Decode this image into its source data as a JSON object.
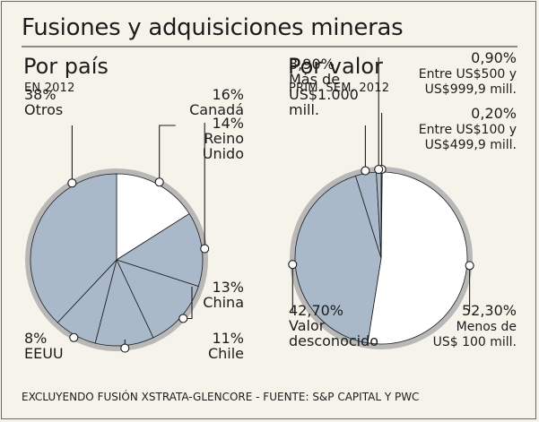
{
  "title": "Fusiones y adquisiciones mineras",
  "footer": "EXCLUYENDO FUSIÓN XSTRATA-GLENCORE - FUENTE: S&P CAPITAL Y PWC",
  "colors": {
    "background": "#f6f3ea",
    "slice_fill": "#a9b9c9",
    "highlight_fill": "#ffffff",
    "ring": "#b8b8b8",
    "line": "#1c1c1c"
  },
  "chart_data": [
    {
      "type": "pie",
      "title": "Por país",
      "subtitle": "EN 2012",
      "slices": [
        {
          "percent": "16%",
          "value": 16,
          "label_lines": [
            "Canadá"
          ],
          "highlight": true
        },
        {
          "percent": "14%",
          "value": 14,
          "label_lines": [
            "Reino",
            "Unido"
          ],
          "highlight": false
        },
        {
          "percent": "13%",
          "value": 13,
          "label_lines": [
            "China"
          ],
          "highlight": false
        },
        {
          "percent": "11%",
          "value": 11,
          "label_lines": [
            "Chile"
          ],
          "highlight": false
        },
        {
          "percent": "8%",
          "value": 8,
          "label_lines": [
            "EEUU"
          ],
          "highlight": false
        },
        {
          "percent": "38%",
          "value": 38,
          "label_lines": [
            "Otros"
          ],
          "highlight": false
        }
      ]
    },
    {
      "type": "pie",
      "title": "Por valor",
      "subtitle": "PRIM. SEM. 2012",
      "slices": [
        {
          "percent": "0,20%",
          "value": 0.2,
          "label_lines": [
            "Entre US$100 y",
            "US$499,9 mill."
          ],
          "highlight": false
        },
        {
          "percent": "52,30%",
          "value": 52.3,
          "label_lines": [
            "Menos de",
            "US$ 100 mill."
          ],
          "highlight": true
        },
        {
          "percent": "42,70%",
          "value": 42.7,
          "label_lines": [
            "Valor",
            "desconocido"
          ],
          "highlight": false
        },
        {
          "percent": "3,90%",
          "value": 3.9,
          "label_lines": [
            "Más de",
            "US$1.000",
            "mill."
          ],
          "highlight": false
        },
        {
          "percent": "0,90%",
          "value": 0.9,
          "label_lines": [
            "Entre US$500 y",
            "US$999,9 mill."
          ],
          "highlight": false
        }
      ]
    }
  ]
}
